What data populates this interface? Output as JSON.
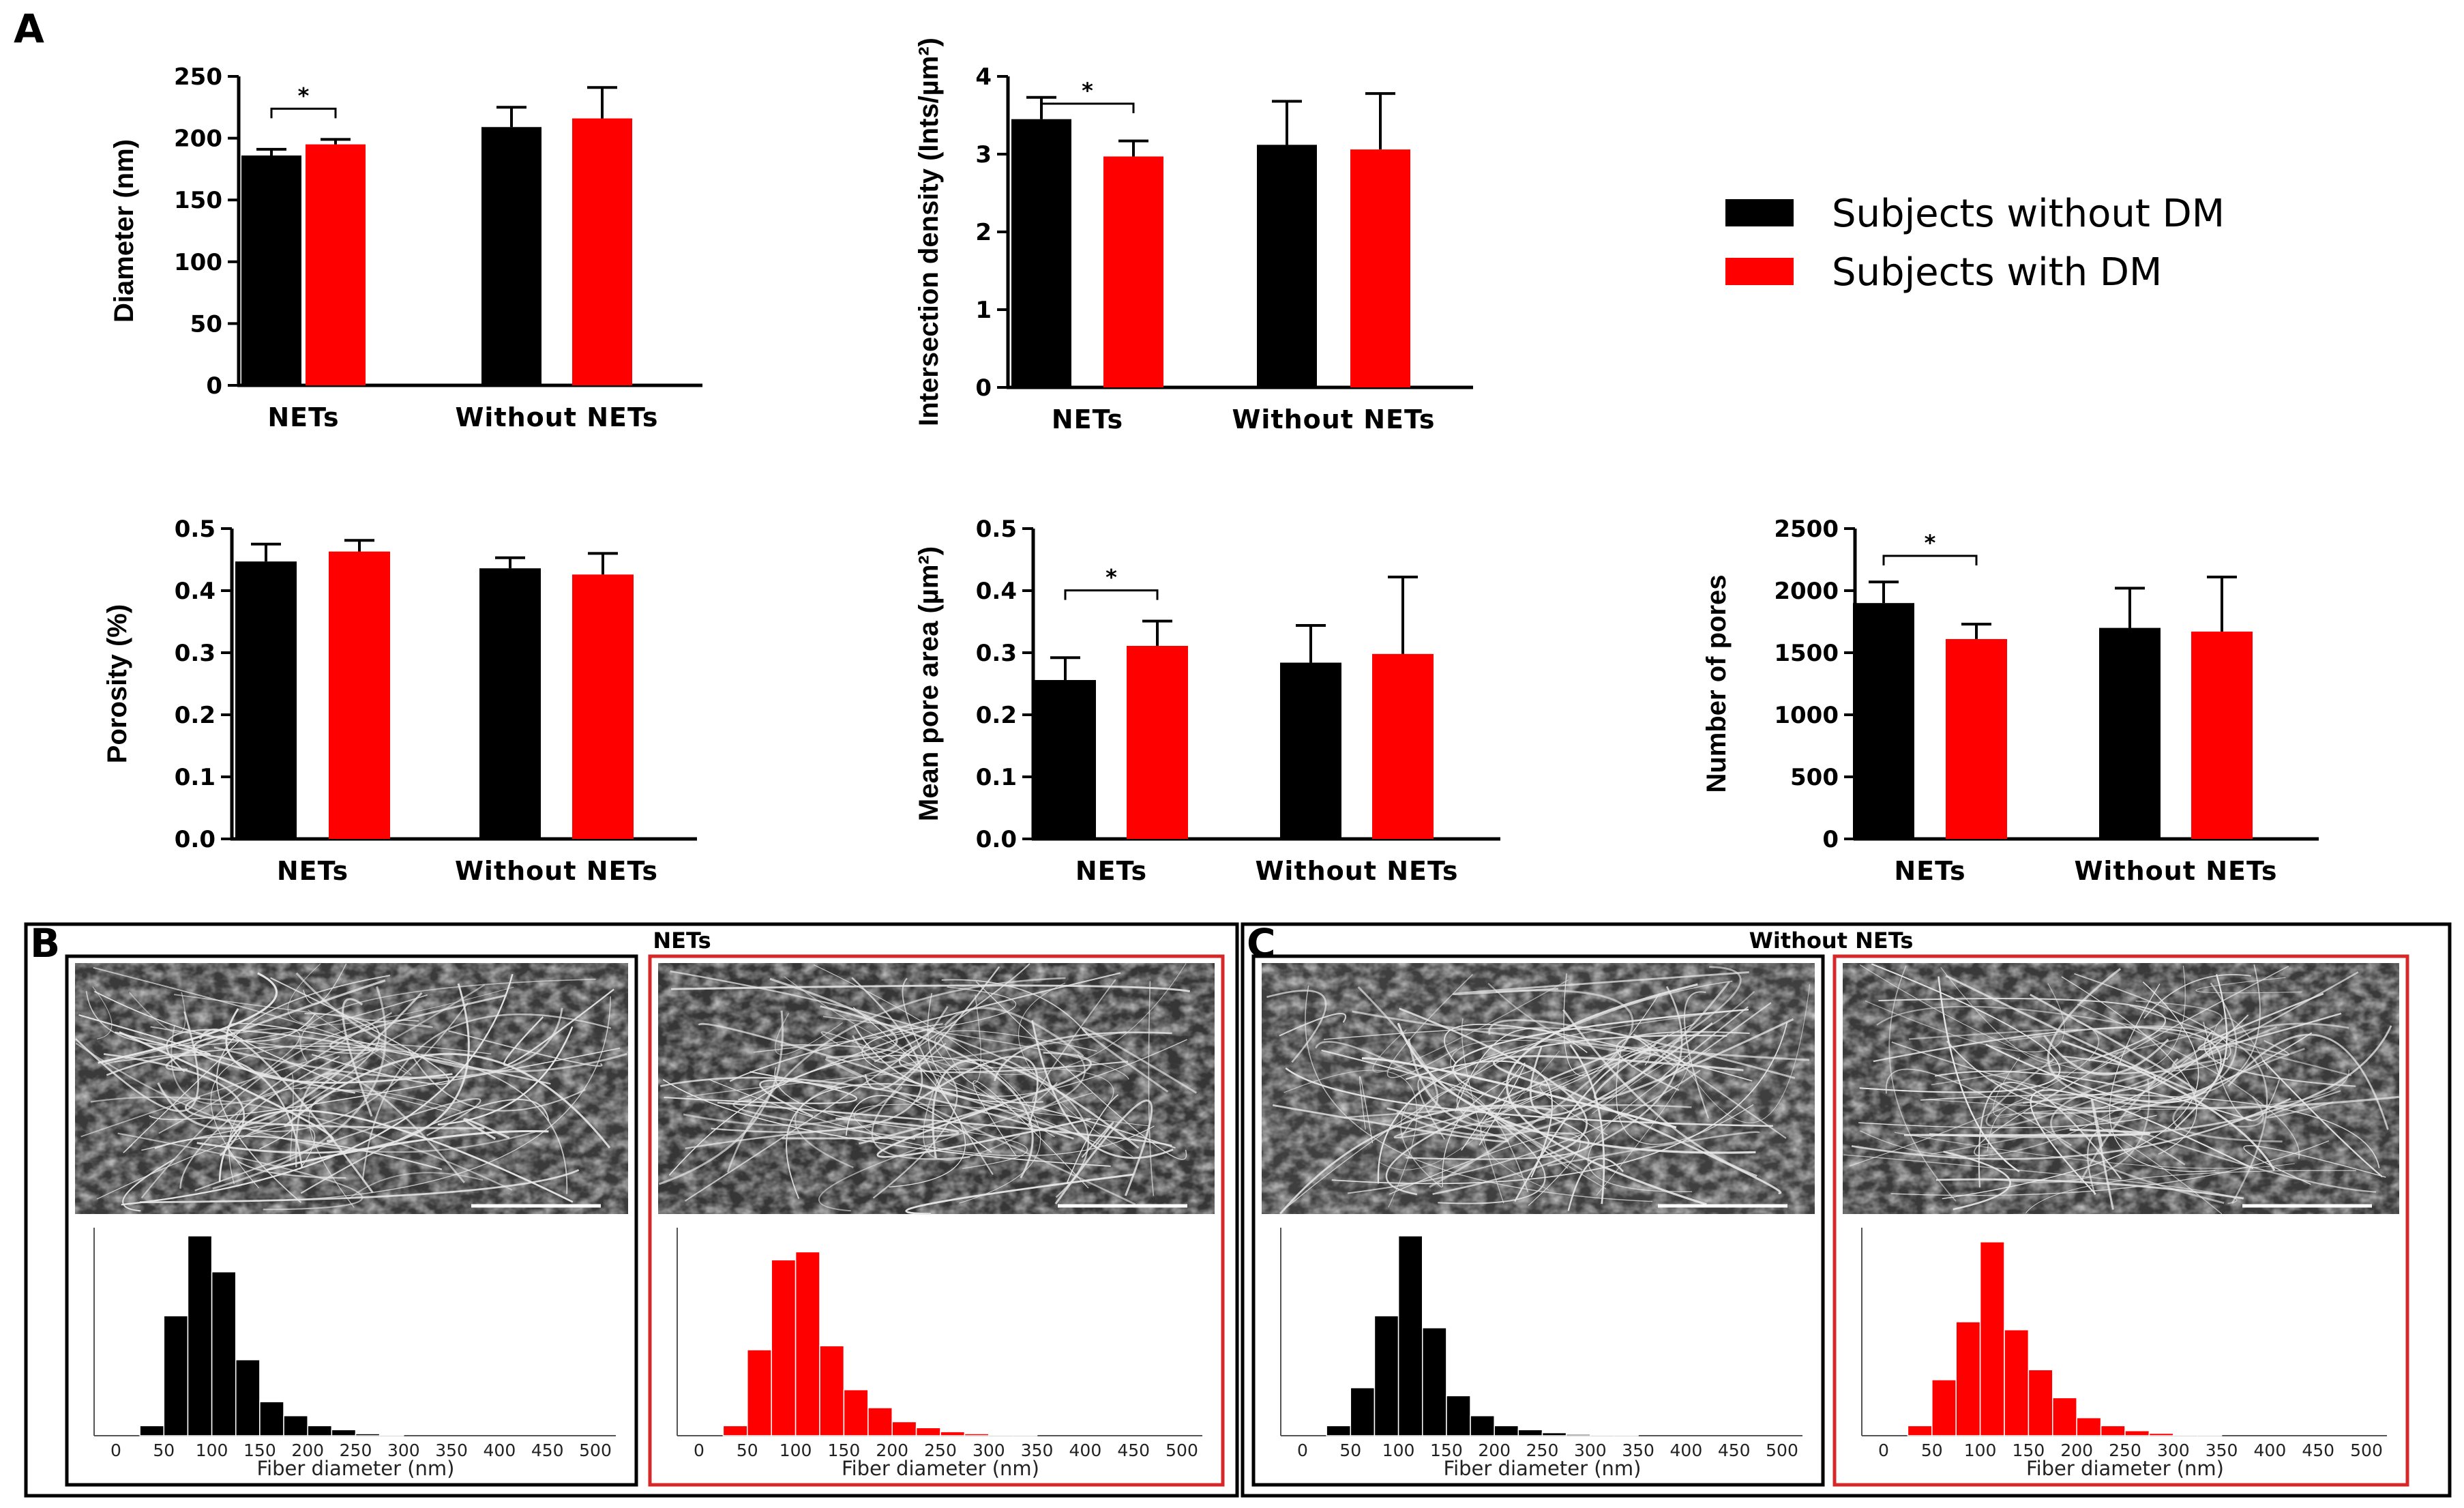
{
  "panel_a_label": "A",
  "panel_b_label": "B",
  "panel_c_label": "C",
  "colors": {
    "without_dm": "#000000",
    "with_dm": "#ff0000",
    "red_frame": "#d62828"
  },
  "legend": {
    "items": [
      {
        "label": "Subjects without DM",
        "color": "#000000"
      },
      {
        "label": "Subjects with DM",
        "color": "#ff0000"
      }
    ]
  },
  "chart_data": [
    {
      "type": "bar",
      "ylabel": "Diameter (nm)",
      "categories": [
        "NETs",
        "Without NETs"
      ],
      "yticks": [
        "0",
        "50",
        "100",
        "150",
        "200",
        "250"
      ],
      "ylim": [
        0,
        250
      ],
      "series": [
        {
          "name": "Subjects without DM",
          "values": [
            186,
            209
          ],
          "errors": [
            5,
            16
          ]
        },
        {
          "name": "Subjects with DM",
          "values": [
            195,
            216
          ],
          "errors": [
            4,
            25
          ]
        }
      ],
      "significance": [
        {
          "category": "NETs",
          "label": "*"
        }
      ]
    },
    {
      "type": "bar",
      "ylabel": "Intersection density (Ints/µm²)",
      "categories": [
        "NETs",
        "Without NETs"
      ],
      "yticks": [
        "0",
        "1",
        "2",
        "3",
        "4"
      ],
      "ylim": [
        0,
        4
      ],
      "series": [
        {
          "name": "Subjects without DM",
          "values": [
            3.45,
            3.12
          ],
          "errors": [
            0.28,
            0.56
          ]
        },
        {
          "name": "Subjects with DM",
          "values": [
            2.97,
            3.06
          ],
          "errors": [
            0.2,
            0.72
          ]
        }
      ],
      "significance": [
        {
          "category": "NETs",
          "label": "*"
        }
      ]
    },
    {
      "type": "bar",
      "ylabel": "Porosity (%)",
      "categories": [
        "NETs",
        "Without NETs"
      ],
      "yticks": [
        "0.0",
        "0.1",
        "0.2",
        "0.3",
        "0.4",
        "0.5"
      ],
      "ylim": [
        0,
        0.5
      ],
      "series": [
        {
          "name": "Subjects without DM",
          "values": [
            0.447,
            0.436
          ],
          "errors": [
            0.028,
            0.017
          ]
        },
        {
          "name": "Subjects with DM",
          "values": [
            0.463,
            0.426
          ],
          "errors": [
            0.018,
            0.034
          ]
        }
      ],
      "significance": []
    },
    {
      "type": "bar",
      "ylabel": "Mean pore area (µm²)",
      "categories": [
        "NETs",
        "Without NETs"
      ],
      "yticks": [
        "0.0",
        "0.1",
        "0.2",
        "0.3",
        "0.4",
        "0.5"
      ],
      "ylim": [
        0,
        0.5
      ],
      "series": [
        {
          "name": "Subjects without DM",
          "values": [
            0.256,
            0.284
          ],
          "errors": [
            0.036,
            0.06
          ]
        },
        {
          "name": "Subjects with DM",
          "values": [
            0.311,
            0.298
          ],
          "errors": [
            0.04,
            0.124
          ]
        }
      ],
      "significance": [
        {
          "category": "NETs",
          "label": "*"
        }
      ]
    },
    {
      "type": "bar",
      "ylabel": "Number of pores",
      "categories": [
        "NETs",
        "Without NETs"
      ],
      "yticks": [
        "0",
        "500",
        "1000",
        "1500",
        "2000",
        "2500"
      ],
      "ylim": [
        0,
        2500
      ],
      "series": [
        {
          "name": "Subjects without DM",
          "values": [
            1900,
            1700
          ],
          "errors": [
            170,
            320
          ]
        },
        {
          "name": "Subjects with DM",
          "values": [
            1610,
            1670
          ],
          "errors": [
            120,
            440
          ]
        }
      ],
      "significance": [
        {
          "category": "NETs",
          "label": "*"
        }
      ]
    },
    {
      "type": "bar",
      "title": "NETs — Subjects without DM",
      "xlabel": "Fiber diameter (nm)",
      "xticks": [
        "0",
        "50",
        "100",
        "150",
        "200",
        "250",
        "300",
        "350",
        "400",
        "450",
        "500"
      ],
      "bin_width": 25,
      "bin_start": 0,
      "values": [
        0.0,
        0.05,
        0.6,
        1.0,
        0.82,
        0.38,
        0.17,
        0.1,
        0.05,
        0.03,
        0.01,
        0.005,
        0.0
      ]
    },
    {
      "type": "bar",
      "title": "NETs — Subjects with DM",
      "xlabel": "Fiber diameter (nm)",
      "xticks": [
        "0",
        "50",
        "100",
        "150",
        "200",
        "250",
        "300",
        "350",
        "400",
        "450",
        "500"
      ],
      "bin_width": 25,
      "bin_start": 0,
      "values": [
        0.0,
        0.05,
        0.43,
        0.88,
        0.92,
        0.45,
        0.23,
        0.14,
        0.07,
        0.04,
        0.02,
        0.01,
        0.005,
        0.003
      ]
    },
    {
      "type": "bar",
      "title": "Without NETs — Subjects without DM",
      "xlabel": "Fiber diameter (nm)",
      "xticks": [
        "0",
        "50",
        "100",
        "150",
        "200",
        "250",
        "300",
        "350",
        "400",
        "450",
        "500"
      ],
      "bin_width": 25,
      "bin_start": 0,
      "values": [
        0.0,
        0.05,
        0.24,
        0.6,
        1.0,
        0.54,
        0.2,
        0.1,
        0.05,
        0.03,
        0.015,
        0.007,
        0.003,
        0.001
      ]
    },
    {
      "type": "bar",
      "title": "Without NETs — Subjects with DM",
      "xlabel": "Fiber diameter (nm)",
      "xticks": [
        "0",
        "50",
        "100",
        "150",
        "200",
        "250",
        "300",
        "350",
        "400",
        "450",
        "500"
      ],
      "bin_width": 25,
      "bin_start": 0,
      "values": [
        0.0,
        0.05,
        0.28,
        0.57,
        0.97,
        0.53,
        0.33,
        0.19,
        0.09,
        0.05,
        0.025,
        0.012,
        0.005,
        0.002
      ]
    }
  ],
  "sem_panels": [
    {
      "title": "NETs"
    },
    {
      "title": "Without NETs"
    }
  ]
}
